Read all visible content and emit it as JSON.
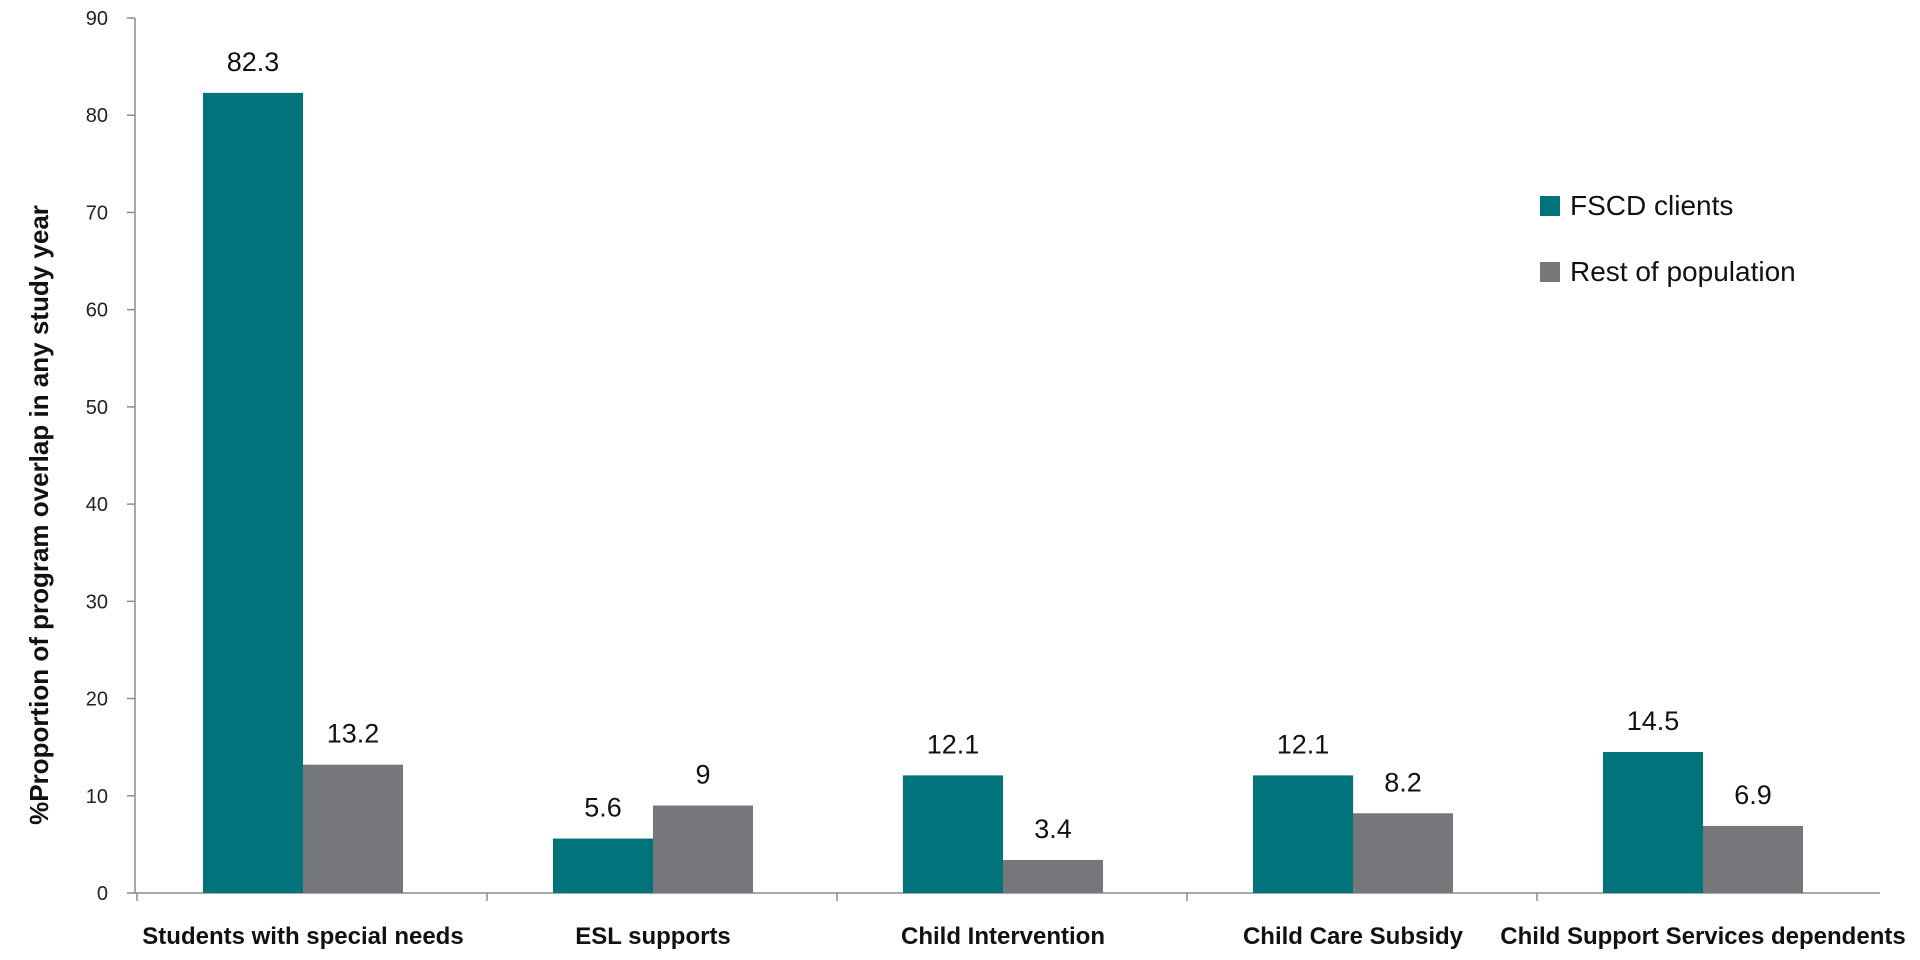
{
  "chart_data": {
    "type": "bar",
    "title": "",
    "xlabel": "",
    "ylabel": "%Proportion of program overlap in any study year",
    "ylim": [
      0,
      90
    ],
    "yticks": [
      0,
      10,
      20,
      30,
      40,
      50,
      60,
      70,
      80,
      90
    ],
    "grid": false,
    "legend_position": "top-right",
    "categories": [
      "Students with special needs",
      "ESL supports",
      "Child Intervention",
      "Child Care Subsidy",
      "Child Support Services dependents"
    ],
    "series": [
      {
        "name": "FSCD clients",
        "color": "#00747a",
        "values": [
          82.3,
          5.6,
          12.1,
          12.1,
          14.5
        ],
        "labels": [
          "82.3",
          "5.6",
          "12.1",
          "12.1",
          "14.5"
        ]
      },
      {
        "name": "Rest of population",
        "color": "#76777a",
        "values": [
          13.2,
          9,
          3.4,
          8.2,
          6.9
        ],
        "labels": [
          "13.2",
          "9",
          "3.4",
          "8.2",
          "6.9"
        ]
      }
    ]
  }
}
